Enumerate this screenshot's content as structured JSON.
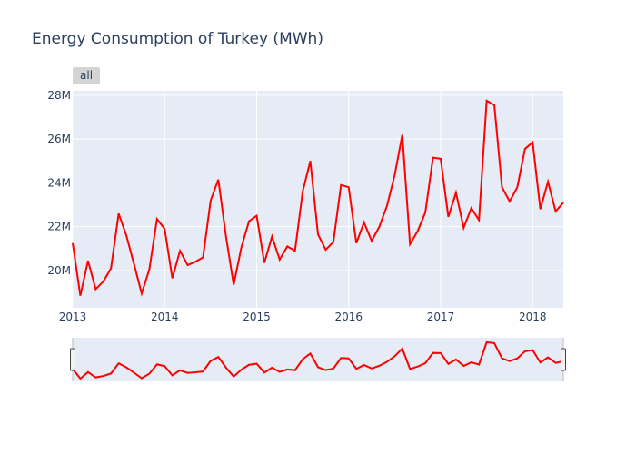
{
  "chart_data": {
    "type": "line",
    "title": "Energy Consumption of Turkey (MWh)",
    "xlabel": "",
    "ylabel": "",
    "x_start": "2013-01",
    "x_end": "2018-05",
    "x_range": [
      "2013-01",
      "2018-05"
    ],
    "ylim": [
      18300000,
      28200000
    ],
    "y_ticks": [
      20000000,
      22000000,
      24000000,
      26000000,
      28000000
    ],
    "y_tick_labels": [
      "20M",
      "22M",
      "24M",
      "26M",
      "28M"
    ],
    "x_tick_labels": [
      "2013",
      "2014",
      "2015",
      "2016",
      "2017",
      "2018"
    ],
    "grid": true,
    "series": [
      {
        "color": "#ff0000",
        "x": [
          "2013-01",
          "2013-02",
          "2013-03",
          "2013-04",
          "2013-05",
          "2013-06",
          "2013-07",
          "2013-08",
          "2013-09",
          "2013-10",
          "2013-11",
          "2013-12",
          "2014-01",
          "2014-02",
          "2014-03",
          "2014-04",
          "2014-05",
          "2014-06",
          "2014-07",
          "2014-08",
          "2014-09",
          "2014-10",
          "2014-11",
          "2014-12",
          "2015-01",
          "2015-02",
          "2015-03",
          "2015-04",
          "2015-05",
          "2015-06",
          "2015-07",
          "2015-08",
          "2015-09",
          "2015-10",
          "2015-11",
          "2015-12",
          "2016-01",
          "2016-02",
          "2016-03",
          "2016-04",
          "2016-05",
          "2016-06",
          "2016-07",
          "2016-08",
          "2016-09",
          "2016-10",
          "2016-11",
          "2016-12",
          "2017-01",
          "2017-02",
          "2017-03",
          "2017-04",
          "2017-05",
          "2017-06",
          "2017-07",
          "2017-08",
          "2017-09",
          "2017-10",
          "2017-11",
          "2017-12",
          "2018-01",
          "2018-02",
          "2018-03",
          "2018-04",
          "2018-05"
        ],
        "values": [
          21250000,
          18850000,
          20450000,
          19150000,
          19500000,
          20100000,
          22600000,
          21600000,
          20300000,
          18950000,
          20050000,
          22350000,
          21900000,
          19650000,
          20900000,
          20250000,
          20400000,
          20600000,
          23200000,
          24150000,
          21550000,
          19350000,
          21050000,
          22250000,
          22500000,
          20350000,
          21550000,
          20500000,
          21100000,
          20900000,
          23600000,
          25000000,
          21650000,
          20950000,
          21300000,
          23900000,
          23800000,
          21250000,
          22200000,
          21350000,
          22000000,
          22950000,
          24350000,
          26200000,
          21200000,
          21800000,
          22650000,
          25150000,
          25100000,
          22450000,
          23550000,
          21950000,
          22850000,
          22300000,
          27750000,
          27550000,
          23800000,
          23150000,
          23800000,
          25550000,
          25850000,
          22800000,
          24050000,
          22700000,
          23100000
        ]
      }
    ]
  },
  "controls": {
    "range_button_label": "all"
  },
  "colors": {
    "line": "#ff0000",
    "plot_bg": "#e5ecf6",
    "grid": "#ffffff",
    "text": "#2a3f5f"
  }
}
